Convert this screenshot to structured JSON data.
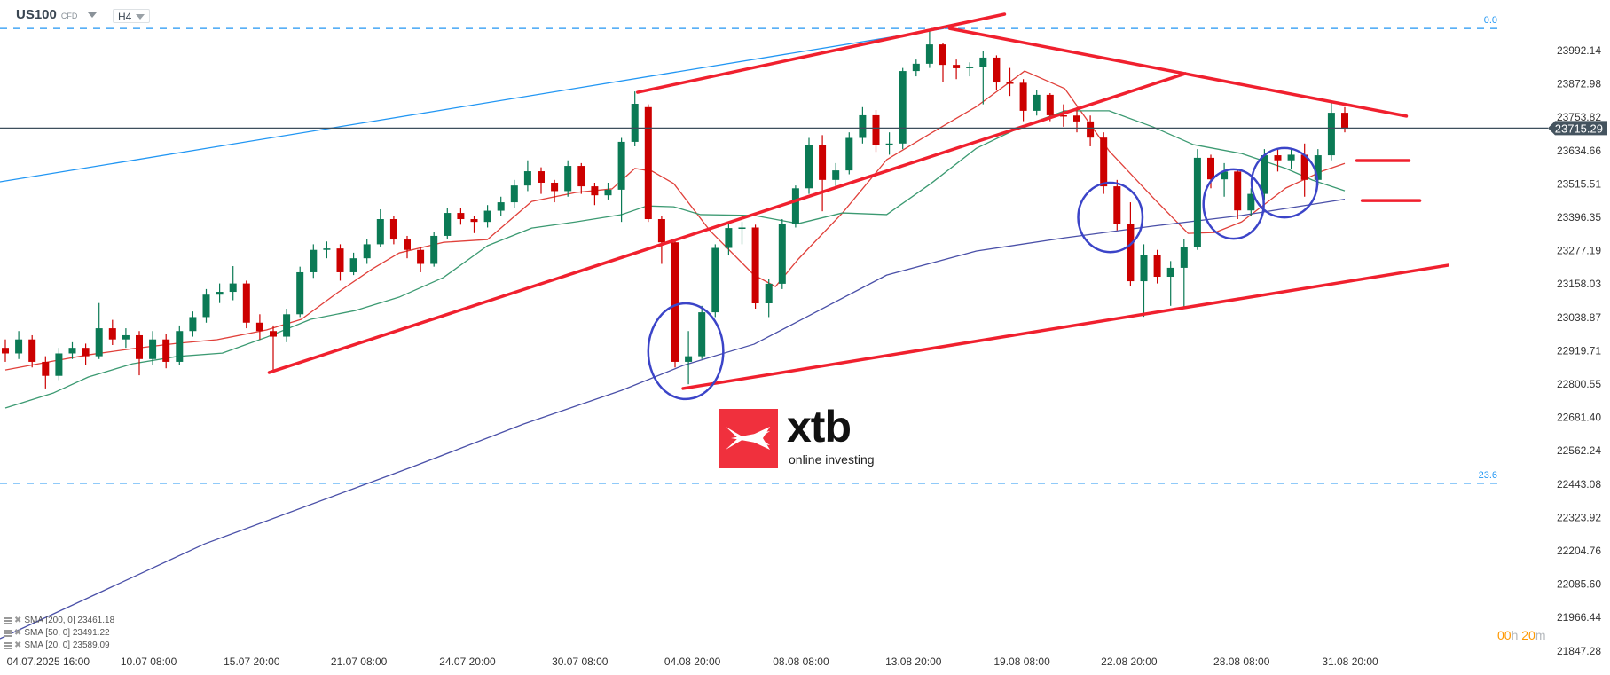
{
  "header": {
    "symbol": "US100",
    "instrument_type": "CFD",
    "timeframe": "H4"
  },
  "colors": {
    "bull": "#0b7a55",
    "bear": "#cc0000",
    "sma20": "#e0403a",
    "sma50": "#3c9a72",
    "sma200": "#4a50a8",
    "fib": "#2196f3",
    "trendline": "#f0202e",
    "ellipse": "#3b44c8",
    "price_line": "#3d4f5c",
    "countdown": "#ff9800"
  },
  "countdown": {
    "hours": "00",
    "h": "h",
    "minutes": "20",
    "m": "m"
  },
  "legend": [
    {
      "label": "SMA [200, 0] 23461.18"
    },
    {
      "label": "SMA [50, 0] 23491.22"
    },
    {
      "label": "SMA [20, 0] 23589.09"
    }
  ],
  "logo": {
    "text": "xtb",
    "tagline": "online investing"
  },
  "chart_data": {
    "type": "candlestick",
    "ylim": [
      21800,
      24110
    ],
    "y_ticks": [
      "23992.14",
      "23872.98",
      "23753.82",
      "23634.66",
      "23515.51",
      "23396.35",
      "23277.19",
      "23158.03",
      "23038.87",
      "22919.71",
      "22800.55",
      "22681.40",
      "22562.24",
      "22443.08",
      "22323.92",
      "22204.76",
      "22085.60",
      "21966.44",
      "21847.28"
    ],
    "x_ticks": [
      {
        "label": "04.07.2025  16:00",
        "bar": 3.2
      },
      {
        "label": "10.07  08:00",
        "bar": 10.7
      },
      {
        "label": "15.07  20:00",
        "bar": 18.4
      },
      {
        "label": "21.07  08:00",
        "bar": 26.4
      },
      {
        "label": "24.07  20:00",
        "bar": 34.5
      },
      {
        "label": "30.07  08:00",
        "bar": 42.9
      },
      {
        "label": "04.08  20:00",
        "bar": 51.3
      },
      {
        "label": "08.08  08:00",
        "bar": 59.4
      },
      {
        "label": "13.08  20:00",
        "bar": 67.8
      },
      {
        "label": "19.08  08:00",
        "bar": 75.9
      },
      {
        "label": "22.08  20:00",
        "bar": 83.9
      },
      {
        "label": "28.08  08:00",
        "bar": 92.3
      },
      {
        "label": "31.08  20:00",
        "bar": 100.4
      }
    ],
    "current_price": "23715.29",
    "candles_ohlc": [
      [
        22930,
        22960,
        22880,
        22910
      ],
      [
        22910,
        22990,
        22890,
        22960
      ],
      [
        22960,
        22975,
        22860,
        22880
      ],
      [
        22880,
        22900,
        22785,
        22830
      ],
      [
        22830,
        22930,
        22815,
        22910
      ],
      [
        22910,
        22950,
        22890,
        22930
      ],
      [
        22930,
        22945,
        22870,
        22900
      ],
      [
        22900,
        23090,
        22890,
        23000
      ],
      [
        23000,
        23030,
        22940,
        22960
      ],
      [
        22960,
        23000,
        22930,
        22975
      ],
      [
        22975,
        22990,
        22832,
        22890
      ],
      [
        22890,
        22990,
        22870,
        22960
      ],
      [
        22960,
        22980,
        22857,
        22880
      ],
      [
        22880,
        23010,
        22870,
        22990
      ],
      [
        22990,
        23060,
        22970,
        23040
      ],
      [
        23040,
        23140,
        23020,
        23120
      ],
      [
        23120,
        23160,
        23090,
        23130
      ],
      [
        23130,
        23222,
        23100,
        23160
      ],
      [
        23160,
        23170,
        23000,
        23020
      ],
      [
        23020,
        23050,
        22960,
        22990
      ],
      [
        22990,
        23010,
        22842,
        22970
      ],
      [
        22970,
        23070,
        22950,
        23050
      ],
      [
        23050,
        23220,
        23040,
        23200
      ],
      [
        23200,
        23300,
        23180,
        23280
      ],
      [
        23280,
        23310,
        23250,
        23285
      ],
      [
        23285,
        23300,
        23170,
        23200
      ],
      [
        23200,
        23270,
        23190,
        23250
      ],
      [
        23250,
        23320,
        23230,
        23300
      ],
      [
        23300,
        23425,
        23290,
        23390
      ],
      [
        23390,
        23400,
        23300,
        23317
      ],
      [
        23317,
        23330,
        23250,
        23280
      ],
      [
        23280,
        23290,
        23200,
        23230
      ],
      [
        23230,
        23345,
        23220,
        23330
      ],
      [
        23330,
        23430,
        23320,
        23412
      ],
      [
        23412,
        23430,
        23370,
        23390
      ],
      [
        23390,
        23400,
        23340,
        23380
      ],
      [
        23380,
        23440,
        23360,
        23420
      ],
      [
        23420,
        23470,
        23400,
        23450
      ],
      [
        23450,
        23530,
        23430,
        23510
      ],
      [
        23510,
        23600,
        23490,
        23561
      ],
      [
        23561,
        23575,
        23480,
        23520
      ],
      [
        23520,
        23530,
        23450,
        23490
      ],
      [
        23490,
        23600,
        23470,
        23580
      ],
      [
        23580,
        23590,
        23480,
        23507
      ],
      [
        23507,
        23520,
        23440,
        23475
      ],
      [
        23475,
        23520,
        23460,
        23495
      ],
      [
        23495,
        23680,
        23380,
        23666
      ],
      [
        23666,
        23846,
        23650,
        23802
      ],
      [
        23790,
        23800,
        23380,
        23390
      ],
      [
        23390,
        23400,
        23230,
        23307
      ],
      [
        23307,
        23320,
        22860,
        22880
      ],
      [
        22880,
        22990,
        22800,
        22900
      ],
      [
        22900,
        23080,
        22890,
        23057
      ],
      [
        23057,
        23300,
        23040,
        23287
      ],
      [
        23287,
        23380,
        23260,
        23358
      ],
      [
        23358,
        23380,
        23300,
        23360
      ],
      [
        23360,
        23370,
        23070,
        23089
      ],
      [
        23089,
        23175,
        23040,
        23159
      ],
      [
        23159,
        23390,
        23140,
        23374
      ],
      [
        23374,
        23510,
        23360,
        23500
      ],
      [
        23500,
        23680,
        23480,
        23656
      ],
      [
        23656,
        23690,
        23418,
        23530
      ],
      [
        23530,
        23590,
        23500,
        23564
      ],
      [
        23564,
        23700,
        23550,
        23680
      ],
      [
        23680,
        23790,
        23660,
        23761
      ],
      [
        23761,
        23780,
        23630,
        23656
      ],
      [
        23656,
        23700,
        23620,
        23660
      ],
      [
        23660,
        23930,
        23640,
        23919
      ],
      [
        23919,
        23960,
        23900,
        23945
      ],
      [
        23945,
        24068,
        23930,
        24014
      ],
      [
        24014,
        24020,
        23880,
        23941
      ],
      [
        23941,
        23960,
        23890,
        23929
      ],
      [
        23929,
        23950,
        23900,
        23935
      ],
      [
        23935,
        23990,
        23800,
        23967
      ],
      [
        23967,
        23975,
        23850,
        23878
      ],
      [
        23878,
        23930,
        23830,
        23877
      ],
      [
        23877,
        23890,
        23740,
        23777
      ],
      [
        23777,
        23850,
        23760,
        23834
      ],
      [
        23834,
        23840,
        23740,
        23761
      ],
      [
        23761,
        23800,
        23720,
        23760
      ],
      [
        23760,
        23790,
        23700,
        23739
      ],
      [
        23739,
        23760,
        23650,
        23681
      ],
      [
        23681,
        23700,
        23480,
        23507
      ],
      [
        23507,
        23530,
        23350,
        23374
      ],
      [
        23374,
        23450,
        23150,
        23168
      ],
      [
        23168,
        23300,
        23041,
        23263
      ],
      [
        23263,
        23280,
        23160,
        23184
      ],
      [
        23184,
        23240,
        23080,
        23216
      ],
      [
        23216,
        23320,
        23070,
        23290
      ],
      [
        23290,
        23640,
        23280,
        23609
      ],
      [
        23609,
        23620,
        23500,
        23532
      ],
      [
        23532,
        23590,
        23470,
        23560
      ],
      [
        23560,
        23570,
        23390,
        23421
      ],
      [
        23421,
        23500,
        23400,
        23480
      ],
      [
        23480,
        23640,
        23460,
        23618
      ],
      [
        23618,
        23640,
        23560,
        23600
      ],
      [
        23600,
        23640,
        23570,
        23620
      ],
      [
        23620,
        23660,
        23470,
        23530
      ],
      [
        23530,
        23640,
        23510,
        23618
      ],
      [
        23618,
        23810,
        23600,
        23770
      ],
      [
        23770,
        23790,
        23700,
        23715
      ]
    ],
    "series": [
      {
        "name": "SMA [20, 0]",
        "points": [
          [
            0,
            22851
          ],
          [
            3.6,
            22883
          ],
          [
            6.2,
            22905
          ],
          [
            9.5,
            22927
          ],
          [
            12.8,
            22946
          ],
          [
            15.8,
            22959
          ],
          [
            19.5,
            22994
          ],
          [
            22.1,
            23032
          ],
          [
            24.8,
            23127
          ],
          [
            27.4,
            23212
          ],
          [
            29.4,
            23269
          ],
          [
            32.7,
            23307
          ],
          [
            36,
            23317
          ],
          [
            39.3,
            23453
          ],
          [
            42.6,
            23485
          ],
          [
            45.3,
            23498
          ],
          [
            47,
            23571
          ],
          [
            48.3,
            23561
          ],
          [
            49.9,
            23517
          ],
          [
            52.6,
            23349
          ],
          [
            55.9,
            23190
          ],
          [
            57.5,
            23149
          ],
          [
            59.2,
            23247
          ],
          [
            62.5,
            23412
          ],
          [
            65.8,
            23602
          ],
          [
            69.1,
            23697
          ],
          [
            72.5,
            23792
          ],
          [
            76.1,
            23919
          ],
          [
            79.1,
            23856
          ],
          [
            82.4,
            23634
          ],
          [
            85.7,
            23466
          ],
          [
            88.3,
            23339
          ],
          [
            90.3,
            23342
          ],
          [
            92.3,
            23380
          ],
          [
            95.6,
            23501
          ],
          [
            98.3,
            23561
          ],
          [
            100,
            23589
          ]
        ]
      },
      {
        "name": "SMA [50, 0]",
        "points": [
          [
            0,
            22715
          ],
          [
            3.6,
            22769
          ],
          [
            6.2,
            22826
          ],
          [
            9.5,
            22873
          ],
          [
            12.8,
            22899
          ],
          [
            16.2,
            22911
          ],
          [
            19.5,
            22968
          ],
          [
            22.8,
            23032
          ],
          [
            26.1,
            23063
          ],
          [
            29.4,
            23111
          ],
          [
            32.7,
            23181
          ],
          [
            36,
            23295
          ],
          [
            39.3,
            23358
          ],
          [
            42.6,
            23380
          ],
          [
            46,
            23406
          ],
          [
            47.9,
            23437
          ],
          [
            49.9,
            23434
          ],
          [
            51.9,
            23406
          ],
          [
            55.9,
            23403
          ],
          [
            59.2,
            23374
          ],
          [
            62.5,
            23412
          ],
          [
            65.8,
            23406
          ],
          [
            69.1,
            23517
          ],
          [
            72.5,
            23643
          ],
          [
            75.8,
            23719
          ],
          [
            79.1,
            23777
          ],
          [
            82.4,
            23777
          ],
          [
            85.7,
            23719
          ],
          [
            88.7,
            23656
          ],
          [
            92.3,
            23624
          ],
          [
            95.6,
            23571
          ],
          [
            97.6,
            23529
          ],
          [
            100,
            23491
          ]
        ]
      },
      {
        "name": "SMA [200, 0]",
        "points": [
          [
            -0.4,
            21891
          ],
          [
            14.9,
            22230
          ],
          [
            30.3,
            22503
          ],
          [
            38.7,
            22658
          ],
          [
            46,
            22778
          ],
          [
            50.6,
            22867
          ],
          [
            55.9,
            22943
          ],
          [
            59.2,
            23025
          ],
          [
            65.8,
            23190
          ],
          [
            72.5,
            23276
          ],
          [
            79.1,
            23323
          ],
          [
            85.7,
            23365
          ],
          [
            92.3,
            23403
          ],
          [
            100,
            23461
          ]
        ]
      }
    ],
    "fib_levels": [
      {
        "label": "0.0",
        "price": 24071
      },
      {
        "label": "23.6",
        "price": 22446
      }
    ],
    "drawings": {
      "fib_trendline": [
        [
          -0.4,
          23523
        ],
        [
          70.1,
          24071
        ]
      ],
      "trendlines": [
        [
          [
            47.2,
            23843
          ],
          [
            74.6,
            24122
          ]
        ],
        [
          [
            19.7,
            22842
          ],
          [
            88.1,
            23910
          ]
        ],
        [
          [
            70.5,
            24071
          ],
          [
            104.6,
            23758
          ]
        ],
        [
          [
            50.6,
            22785
          ],
          [
            107.7,
            23225
          ]
        ],
        [
          [
            100.9,
            23599
          ],
          [
            104.8,
            23599
          ]
        ],
        [
          [
            101.3,
            23456
          ],
          [
            105.6,
            23456
          ]
        ]
      ],
      "ellipses": [
        {
          "bar": 50.8,
          "price": 22918,
          "rx_bars": 2.8,
          "ry_price": 171
        },
        {
          "bar": 82.5,
          "price": 23396,
          "rx_bars": 2.4,
          "ry_price": 124
        },
        {
          "bar": 91.7,
          "price": 23444,
          "rx_bars": 2.25,
          "ry_price": 124
        },
        {
          "bar": 95.5,
          "price": 23520,
          "rx_bars": 2.45,
          "ry_price": 124
        }
      ]
    }
  }
}
